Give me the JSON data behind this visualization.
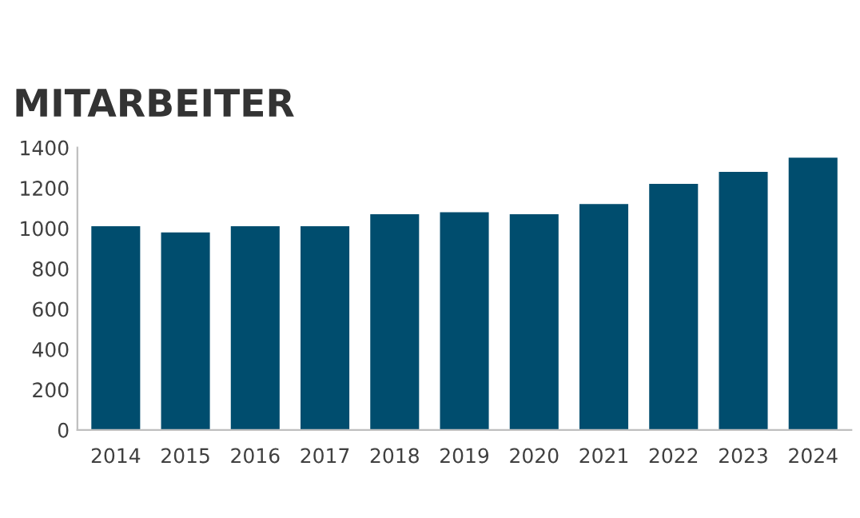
{
  "chart_data": {
    "type": "bar",
    "title": "MITARBEITER",
    "categories": [
      "2014",
      "2015",
      "2016",
      "2017",
      "2018",
      "2019",
      "2020",
      "2021",
      "2022",
      "2023",
      "2024"
    ],
    "values": [
      1010,
      980,
      1010,
      1010,
      1070,
      1080,
      1070,
      1120,
      1220,
      1280,
      1350
    ],
    "color": "#004d6e",
    "ylim": [
      0,
      1400
    ],
    "yticks": [
      0,
      200,
      400,
      600,
      800,
      1000,
      1200,
      1400
    ],
    "grid": false
  }
}
